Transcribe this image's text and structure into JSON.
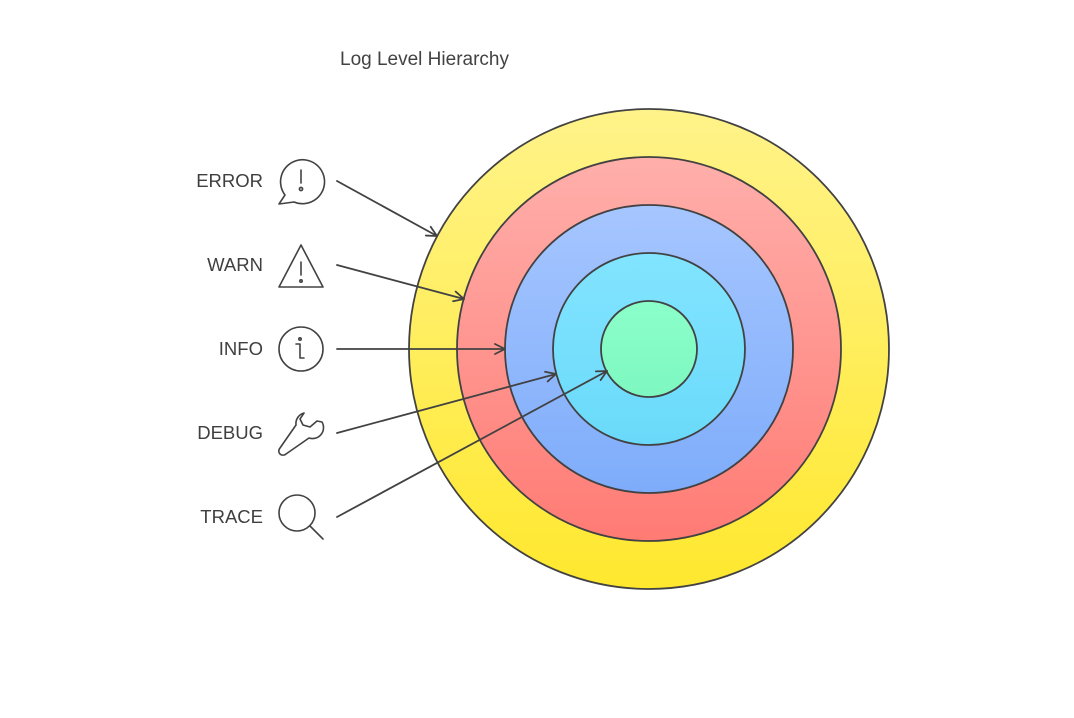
{
  "diagram": {
    "title": "Log Level Hierarchy",
    "levels": [
      {
        "label": "ERROR",
        "icon": "speech-bubble-exclamation-icon",
        "ring_gradient": [
          "#FFF38A",
          "#FFE82E"
        ]
      },
      {
        "label": "WARN",
        "icon": "warning-triangle-icon",
        "ring_gradient": [
          "#FFAFAB",
          "#FF7B74"
        ]
      },
      {
        "label": "INFO",
        "icon": "info-circle-icon",
        "ring_gradient": [
          "#A6C6FF",
          "#7EACFA"
        ]
      },
      {
        "label": "DEBUG",
        "icon": "wrench-icon",
        "ring_gradient": [
          "#82E4FF",
          "#6ADAFA"
        ]
      },
      {
        "label": "TRACE",
        "icon": "magnifying-glass-icon",
        "ring_gradient": [
          "#8BFFC9",
          "#7EF7C0"
        ]
      }
    ],
    "colors": {
      "stroke": "#424242",
      "text": "#3f3f3f",
      "background": "#ffffff"
    }
  }
}
